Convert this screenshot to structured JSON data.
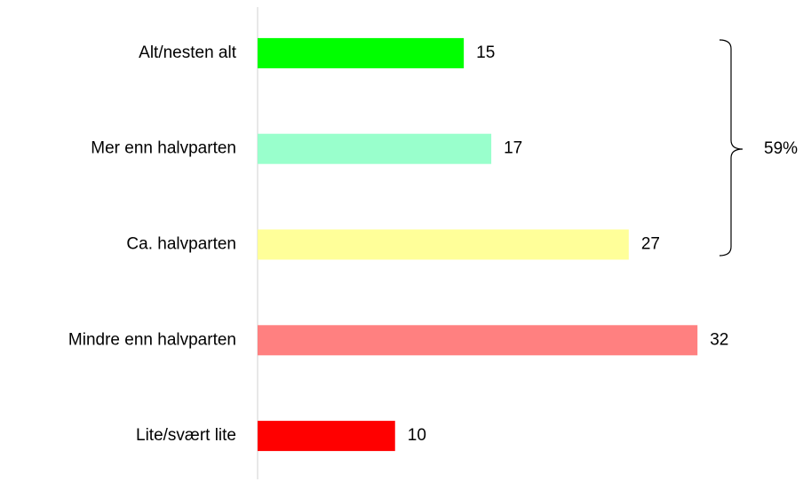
{
  "chart_data": {
    "type": "barh",
    "categories": [
      "Alt/nesten alt",
      "Mer enn halvparten",
      "Ca. halvparten",
      "Mindre enn halvparten",
      "Lite/svært lite"
    ],
    "values": [
      15,
      17,
      27,
      32,
      10
    ],
    "colors": [
      "#00ff00",
      "#99ffcc",
      "#ffff99",
      "#ff8080",
      "#ff0000"
    ],
    "xlim": [
      0,
      40
    ],
    "annotation": "59%"
  }
}
